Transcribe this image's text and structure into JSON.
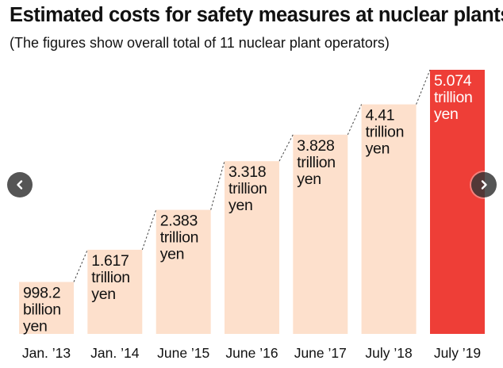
{
  "title": "Estimated costs for safety measures at nuclear plants",
  "subtitle": "(The figures show overall total of 11 nuclear plant operators)",
  "navigation": {
    "prev_icon": "chevron-left-icon",
    "next_icon": "chevron-right-icon"
  },
  "colors": {
    "bar": "#fde0cc",
    "highlight": "#ee3e37",
    "label_text": "#111111",
    "highlight_text": "#ffffff"
  },
  "chart_data": {
    "type": "bar",
    "title": "Estimated costs for safety measures at nuclear plants",
    "subtitle": "(The figures show overall total of 11 nuclear plant operators)",
    "xlabel": "",
    "ylabel": "",
    "unit": "trillion yen",
    "categories": [
      "Jan. ’13",
      "Jan. ’14",
      "June ’15",
      "June ’16",
      "June ’17",
      "July ’18",
      "July ’19"
    ],
    "values": [
      0.9982,
      1.617,
      2.383,
      3.318,
      3.828,
      4.41,
      5.074
    ],
    "data_labels": [
      [
        "998.2",
        "billion",
        "yen"
      ],
      [
        "1.617",
        "trillion",
        "yen"
      ],
      [
        "2.383",
        "trillion",
        "yen"
      ],
      [
        "3.318",
        "trillion",
        "yen"
      ],
      [
        "3.828",
        "trillion",
        "yen"
      ],
      [
        "4.41",
        "trillion",
        "yen"
      ],
      [
        "5.074",
        "trillion",
        "yen"
      ]
    ],
    "highlight_index": 6,
    "ylim": [
      0,
      5.074
    ],
    "grid": false,
    "legend": "none",
    "connectors": "dashed"
  }
}
